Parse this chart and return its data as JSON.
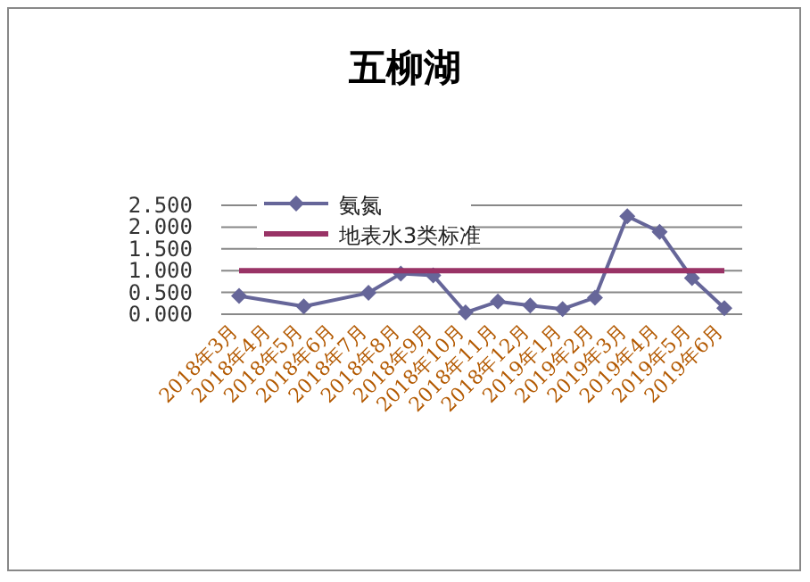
{
  "chart_data": {
    "type": "line",
    "title": "五柳湖",
    "categories": [
      "2018年3月",
      "2018年4月",
      "2018年5月",
      "2018年6月",
      "2018年7月",
      "2018年8月",
      "2018年9月",
      "2018年10月",
      "2018年11月",
      "2018年12月",
      "2019年1月",
      "2019年2月",
      "2019年3月",
      "2019年4月",
      "2019年5月",
      "2019年6月"
    ],
    "series": [
      {
        "name": "氨氮",
        "color": "#666699",
        "marker": "diamond",
        "values": [
          0.42,
          null,
          0.18,
          null,
          0.49,
          0.93,
          0.89,
          0.04,
          0.29,
          0.2,
          0.12,
          0.38,
          2.25,
          1.89,
          0.83,
          0.14
        ]
      },
      {
        "name": "地表水3类标准",
        "color": "#993366",
        "marker": "none",
        "values": [
          1,
          1,
          1,
          1,
          1,
          1,
          1,
          1,
          1,
          1,
          1,
          1,
          1,
          1,
          1,
          1
        ]
      }
    ],
    "ylim": [
      0,
      2.5
    ],
    "yticks": [
      {
        "value": 0,
        "label": "0.000"
      },
      {
        "value": 0.5,
        "label": "0.500"
      },
      {
        "value": 1,
        "label": "1.000"
      },
      {
        "value": 1.5,
        "label": "1.500"
      },
      {
        "value": 2,
        "label": "2.000"
      },
      {
        "value": 2.5,
        "label": "2.500"
      }
    ],
    "grid": "y",
    "legend": "top left"
  }
}
